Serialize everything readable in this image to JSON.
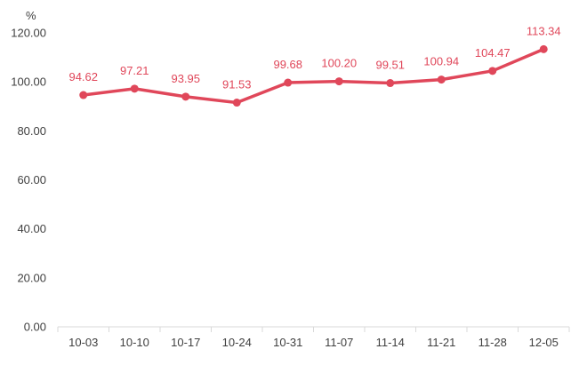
{
  "chart_data": {
    "type": "line",
    "title": "",
    "xlabel": "",
    "ylabel": "%",
    "categories": [
      "10-03",
      "10-10",
      "10-17",
      "10-24",
      "10-31",
      "11-07",
      "11-14",
      "11-21",
      "11-28",
      "12-05"
    ],
    "series": [
      {
        "values": [
          94.62,
          97.21,
          93.95,
          91.53,
          99.68,
          100.2,
          99.51,
          100.94,
          104.47,
          113.34
        ],
        "labels": [
          "94.62",
          "97.21",
          "93.95",
          "91.53",
          "99.68",
          "100.20",
          "99.51",
          "100.94",
          "104.47",
          "113.34"
        ],
        "color": "#e0475a"
      }
    ],
    "ylim": [
      0,
      120
    ],
    "yticks": [
      0,
      20,
      40,
      60,
      80,
      100,
      120
    ],
    "ytick_labels": [
      "0.00",
      "20.00",
      "40.00",
      "60.00",
      "80.00",
      "100.00",
      "120.00"
    ],
    "grid": false,
    "legend": "none",
    "axis_color": "#d9d9d9",
    "text_color": "#404040"
  }
}
